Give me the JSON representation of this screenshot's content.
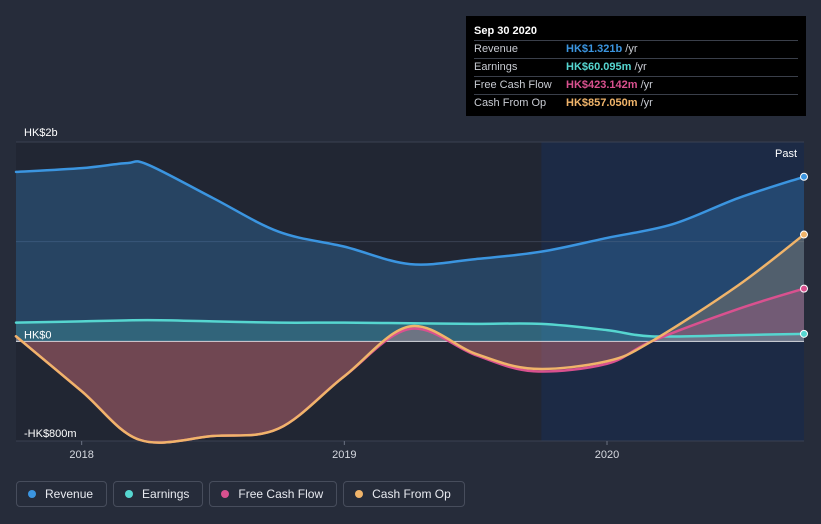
{
  "tooltip": {
    "title": "Sep 30 2020",
    "rows": [
      {
        "name": "Revenue",
        "value": "HK$1.321b",
        "unit": "/yr",
        "color": "#3b95e0"
      },
      {
        "name": "Earnings",
        "value": "HK$60.095m",
        "unit": "/yr",
        "color": "#56d6d0"
      },
      {
        "name": "Free Cash Flow",
        "value": "HK$423.142m",
        "unit": "/yr",
        "color": "#d9518f"
      },
      {
        "name": "Cash From Op",
        "value": "HK$857.050m",
        "unit": "/yr",
        "color": "#f0b46a"
      }
    ]
  },
  "past_label": "Past",
  "legend": [
    {
      "label": "Revenue",
      "color": "#3b95e0"
    },
    {
      "label": "Earnings",
      "color": "#56d6d0"
    },
    {
      "label": "Free Cash Flow",
      "color": "#d9518f"
    },
    {
      "label": "Cash From Op",
      "color": "#f0b46a"
    }
  ],
  "chart_data": {
    "type": "area",
    "title": "",
    "xlabel": "",
    "ylabel": "",
    "y_tick_labels": [
      "HK$2b",
      "HK$0",
      "-HK$800m"
    ],
    "y_tick_values": [
      1600,
      0,
      -800
    ],
    "x_tick_labels": [
      "2018",
      "2019",
      "2020"
    ],
    "x_tick_values": [
      2018,
      2019,
      2020
    ],
    "xlim": [
      2017.75,
      2020.75
    ],
    "ylim": [
      -800,
      1600
    ],
    "past_region_start": 2019.75,
    "series": [
      {
        "name": "Revenue",
        "color": "#3b95e0",
        "x": [
          2017.75,
          2018.0,
          2018.17,
          2018.25,
          2018.5,
          2018.75,
          2019.0,
          2019.25,
          2019.5,
          2019.75,
          2020.0,
          2020.25,
          2020.5,
          2020.75
        ],
        "values": [
          1360,
          1390,
          1430,
          1420,
          1150,
          880,
          760,
          620,
          660,
          720,
          830,
          940,
          1150,
          1321
        ]
      },
      {
        "name": "Earnings",
        "color": "#56d6d0",
        "x": [
          2017.75,
          2018.0,
          2018.25,
          2018.5,
          2018.75,
          2019.0,
          2019.25,
          2019.5,
          2019.75,
          2020.0,
          2020.17,
          2020.5,
          2020.75
        ],
        "values": [
          150,
          160,
          170,
          160,
          150,
          150,
          145,
          140,
          140,
          90,
          40,
          50,
          60.095
        ]
      },
      {
        "name": "Free Cash Flow",
        "color": "#d9518f",
        "x": [
          2017.75,
          2018.0,
          2018.22,
          2018.5,
          2018.75,
          2019.0,
          2019.25,
          2019.5,
          2019.72,
          2020.0,
          2020.17,
          2020.5,
          2020.75
        ],
        "values": [
          40,
          -400,
          -790,
          -760,
          -700,
          -280,
          100,
          -110,
          -240,
          -180,
          0,
          260,
          423.142
        ]
      },
      {
        "name": "Cash From Op",
        "color": "#f0b46a",
        "x": [
          2017.75,
          2018.0,
          2018.22,
          2018.5,
          2018.75,
          2019.0,
          2019.25,
          2019.5,
          2019.72,
          2020.0,
          2020.17,
          2020.5,
          2020.75
        ],
        "values": [
          40,
          -400,
          -790,
          -760,
          -700,
          -280,
          120,
          -100,
          -220,
          -160,
          0,
          450,
          857.05
        ]
      }
    ]
  }
}
